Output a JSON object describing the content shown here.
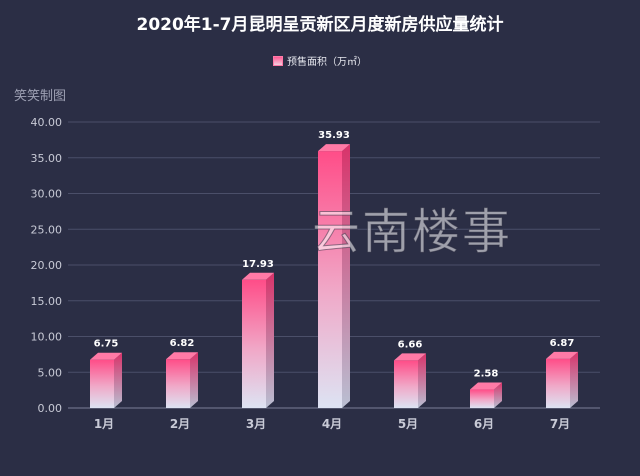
{
  "chart_data": {
    "type": "bar",
    "title": "2020年1-7月昆明呈贡新区月度新房供应量统计",
    "categories": [
      "1月",
      "2月",
      "3月",
      "4月",
      "5月",
      "6月",
      "7月"
    ],
    "series": [
      {
        "name": "预售面积（万㎡）",
        "values": [
          6.75,
          6.82,
          17.93,
          35.93,
          6.66,
          2.58,
          6.87
        ]
      }
    ],
    "ylim": [
      0,
      40
    ],
    "yticks": [
      "0.00",
      "5.00",
      "10.00",
      "15.00",
      "20.00",
      "25.00",
      "30.00",
      "35.00",
      "40.00"
    ],
    "grid": true,
    "legend_position": "top-center",
    "data_labels": true,
    "colors": {
      "bar_top": "#ff4d88",
      "bar_bottom": "#dde3f3",
      "background": "#2b2e45",
      "grid": "#4b4f69"
    }
  },
  "corner_label": "笑笑制图",
  "watermark": "云南楼事"
}
